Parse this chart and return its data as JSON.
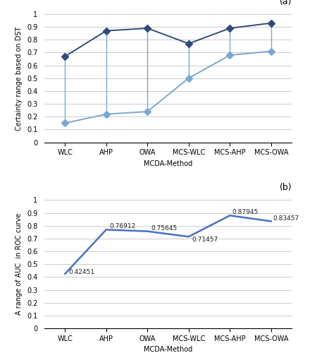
{
  "categories": [
    "WLC",
    "AHP",
    "OWA",
    "MCS-WLC",
    "MCS-AHP",
    "MCS-OWA"
  ],
  "panel_a": {
    "series1": [
      0.67,
      0.87,
      0.89,
      0.77,
      0.89,
      0.93
    ],
    "series2": [
      0.15,
      0.22,
      0.24,
      0.5,
      0.68,
      0.71
    ],
    "color1": "#2e4b7a",
    "color2": "#7ba7d4",
    "vline_color": "#7ba7d4",
    "marker": "D",
    "markersize": 5,
    "linewidth": 1.4,
    "ylabel": "Certainty range based on DST",
    "xlabel": "MCDA-Method",
    "ylim": [
      0,
      1.0
    ],
    "yticks": [
      0,
      0.1,
      0.2,
      0.3,
      0.4,
      0.5,
      0.6,
      0.7,
      0.8,
      0.9,
      1
    ],
    "yticklabels": [
      "0",
      "0.1",
      "0.2",
      "0.3",
      "0.4",
      "0.5",
      "0.6",
      "0.7",
      "0.8",
      "0.9",
      "1"
    ],
    "label": "(a)"
  },
  "panel_b": {
    "values": [
      0.42451,
      0.76912,
      0.75645,
      0.71457,
      0.87945,
      0.83457
    ],
    "color": "#4472c4",
    "linewidth": 1.8,
    "ylabel": "A range of AUC  in ROC curve",
    "xlabel": "MCDA-Method",
    "ylim": [
      0,
      1.0
    ],
    "yticks": [
      0,
      0.1,
      0.2,
      0.3,
      0.4,
      0.5,
      0.6,
      0.7,
      0.8,
      0.9,
      1
    ],
    "yticklabels": [
      "0",
      "0.1",
      "0.2",
      "0.3",
      "0.4",
      "0.5",
      "0.6",
      "0.7",
      "0.8",
      "0.9",
      "1"
    ],
    "label": "(b)",
    "annotations": [
      "0.42451",
      "0.76912",
      "0.75645",
      "0.71457",
      "0.87945",
      "0.83457"
    ],
    "annotation_dx": [
      0.08,
      0.08,
      0.08,
      0.08,
      0.05,
      0.05
    ],
    "annotation_dy": [
      0.0,
      0.01,
      0.01,
      -0.04,
      0.01,
      0.01
    ]
  },
  "grid_color": "#cccccc",
  "tick_fontsize": 7,
  "label_fontsize": 7,
  "bg_color": "#ffffff"
}
